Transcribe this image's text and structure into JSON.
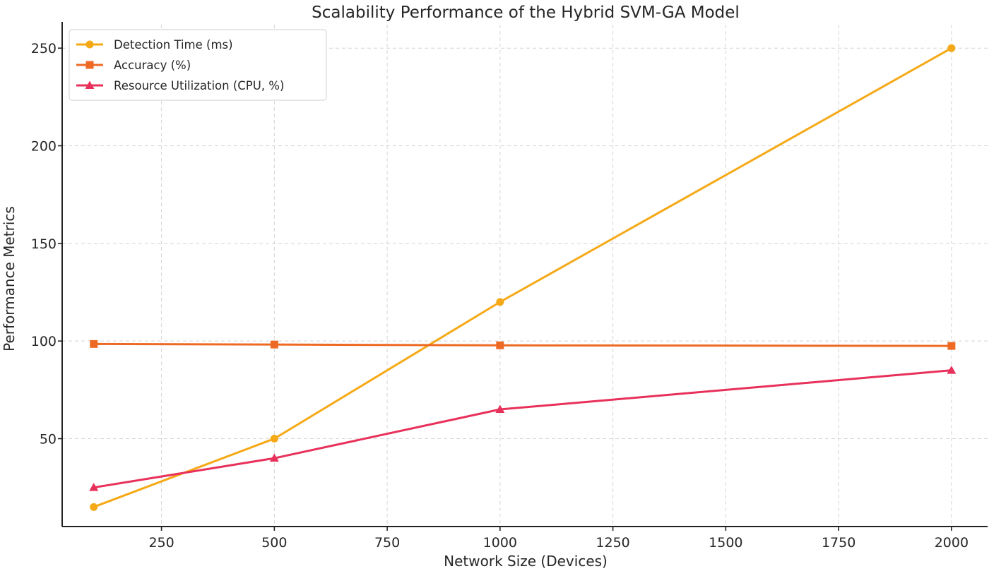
{
  "chart_data": {
    "type": "line",
    "title": "Scalability Performance of the Hybrid SVM-GA Model",
    "xlabel": "Network Size (Devices)",
    "ylabel": "Performance Metrics",
    "x": [
      100,
      500,
      1000,
      2000
    ],
    "xlim": [
      30,
      2080
    ],
    "ylim": [
      5,
      262
    ],
    "xticks": [
      250,
      500,
      750,
      1000,
      1250,
      1500,
      1750,
      2000
    ],
    "xtick_labels": [
      "250",
      "500",
      "750",
      "1000",
      "1250",
      "1500",
      "1750",
      "2000"
    ],
    "yticks": [
      50,
      100,
      150,
      200,
      250
    ],
    "ytick_labels": [
      "50",
      "100",
      "150",
      "200",
      "250"
    ],
    "grid": true,
    "legend_position": "top-left",
    "series": [
      {
        "name": "Detection Time (ms)",
        "marker": "circle",
        "color": "#f5a916",
        "values": [
          15,
          50,
          120,
          250
        ]
      },
      {
        "name": "Accuracy (%)",
        "marker": "square",
        "color": "#ee6a24",
        "values": [
          98.5,
          98.2,
          97.8,
          97.5
        ]
      },
      {
        "name": "Resource Utilization (CPU, %)",
        "marker": "triangle",
        "color": "#e8315a",
        "values": [
          25,
          40,
          65,
          85
        ]
      }
    ]
  }
}
